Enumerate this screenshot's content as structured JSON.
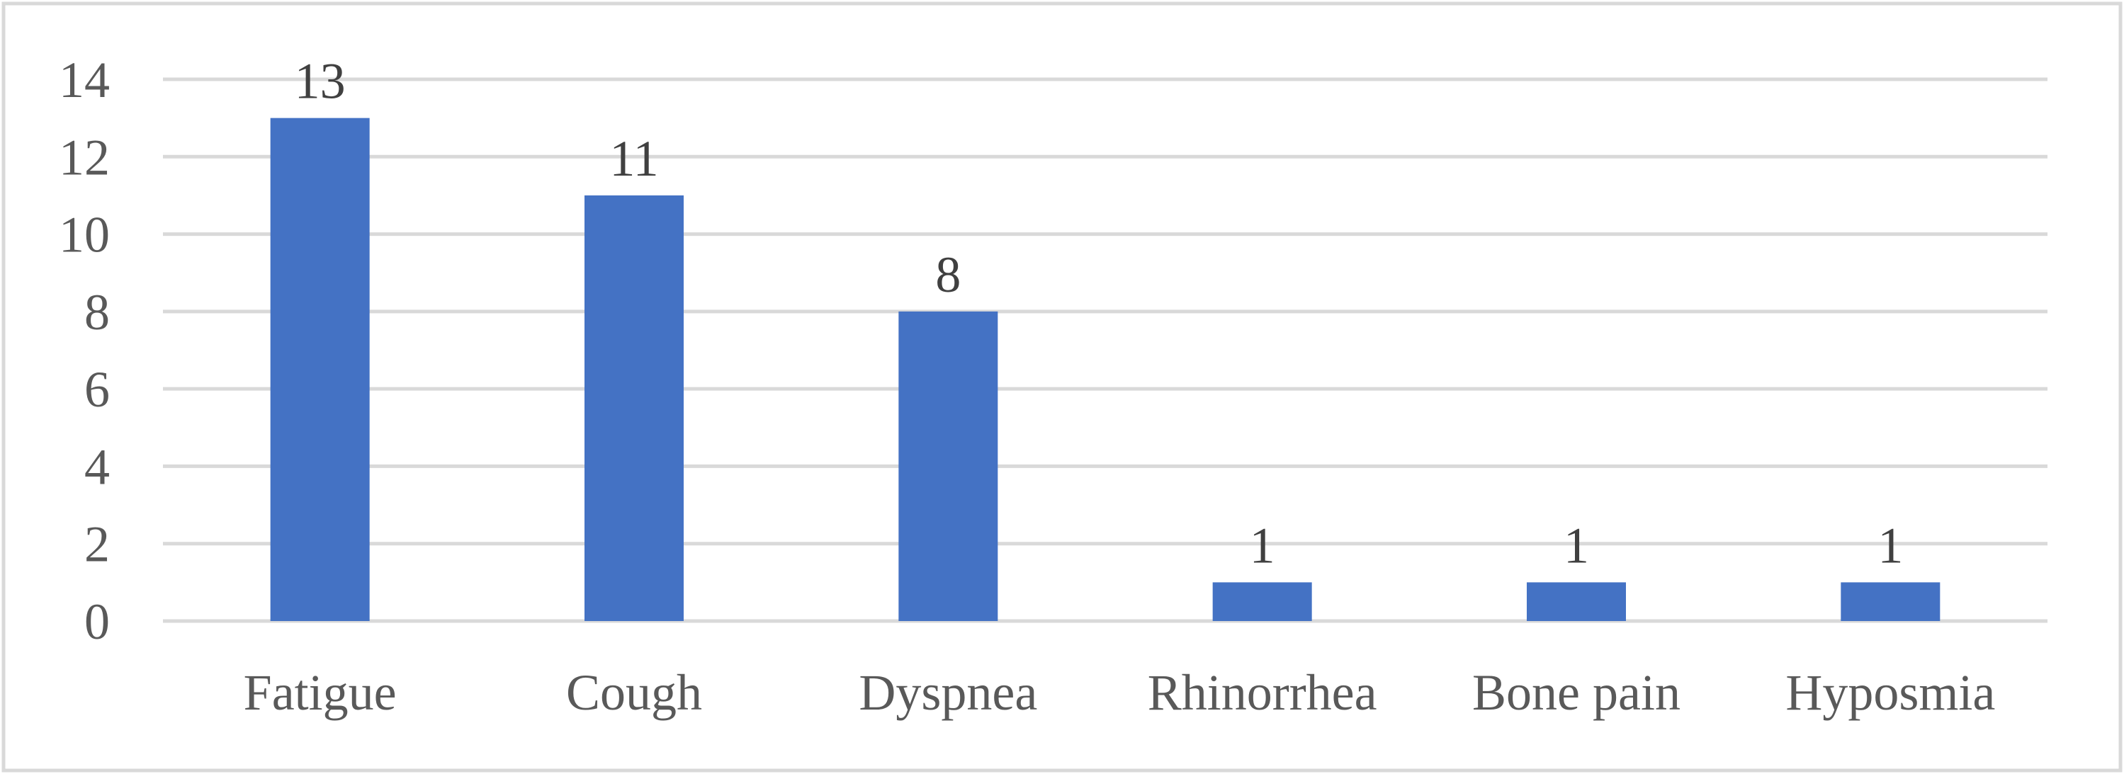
{
  "chart_data": {
    "type": "bar",
    "title": "",
    "xlabel": "",
    "ylabel": "",
    "categories": [
      "Fatigue",
      "Cough",
      "Dyspnea",
      "Rhinorrhea",
      "Bone pain",
      "Hyposmia"
    ],
    "values": [
      13,
      11,
      8,
      1,
      1,
      1
    ],
    "data_labels": [
      "13",
      "11",
      "8",
      "1",
      "1",
      "1"
    ],
    "ylim": [
      0,
      14
    ],
    "yticks": [
      0,
      2,
      4,
      6,
      8,
      10,
      12,
      14
    ],
    "ytick_labels": [
      "0",
      "2",
      "4",
      "6",
      "8",
      "10",
      "12",
      "14"
    ],
    "grid": true,
    "legend": "none",
    "colors": {
      "bar": "#4472C4",
      "grid": "#D9D9D9",
      "frame": "#D9D9D9",
      "tick_text": "#595959",
      "data_label_text": "#404040"
    }
  }
}
